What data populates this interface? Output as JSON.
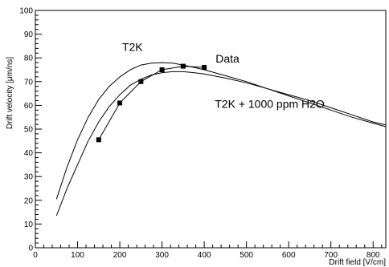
{
  "chart_data": {
    "type": "line",
    "xlabel": "Drift field [V/cm]",
    "ylabel": "Drift velocity [μm/ns]",
    "xlim": [
      0,
      830
    ],
    "ylim": [
      0,
      100
    ],
    "x_ticks": [
      0,
      100,
      200,
      300,
      400,
      500,
      600,
      700,
      800
    ],
    "y_ticks": [
      0,
      10,
      20,
      30,
      40,
      50,
      60,
      70,
      80,
      90,
      100
    ],
    "grid": false,
    "annotations": [
      {
        "text": "T2K",
        "x": 230,
        "y": 83
      },
      {
        "text": "Data",
        "x": 455,
        "y": 78
      },
      {
        "text": "T2K + 1000 ppm H2O",
        "x": 555,
        "y": 59
      }
    ],
    "series": [
      {
        "kind": "curve",
        "x": [
          50,
          75,
          100,
          125,
          150,
          175,
          200,
          225,
          250,
          275,
          300,
          325,
          350,
          375,
          400,
          450,
          500,
          550,
          600,
          650,
          700,
          750,
          800,
          830
        ],
        "y": [
          20.5,
          34,
          45.5,
          55,
          62.5,
          68,
          72,
          75,
          77,
          77.8,
          78,
          77.8,
          77,
          76,
          75,
          72.5,
          70,
          67,
          64,
          61,
          58,
          55,
          52.5,
          51
        ]
      },
      {
        "kind": "curve",
        "x": [
          50,
          75,
          100,
          125,
          150,
          175,
          200,
          225,
          250,
          275,
          300,
          325,
          350,
          375,
          400,
          450,
          500,
          550,
          600,
          650,
          700,
          750,
          800,
          830
        ],
        "y": [
          13.5,
          25,
          35,
          45,
          53,
          59.5,
          64.5,
          68.5,
          71,
          72.8,
          73.8,
          74.2,
          74.2,
          73.8,
          73.2,
          71.5,
          69.5,
          67,
          64.5,
          62,
          59,
          56,
          53,
          51.8
        ]
      },
      {
        "kind": "markers",
        "x": [
          150,
          200,
          250,
          300,
          350,
          400
        ],
        "y": [
          45.5,
          61,
          70,
          75,
          76.5,
          76
        ]
      }
    ]
  }
}
